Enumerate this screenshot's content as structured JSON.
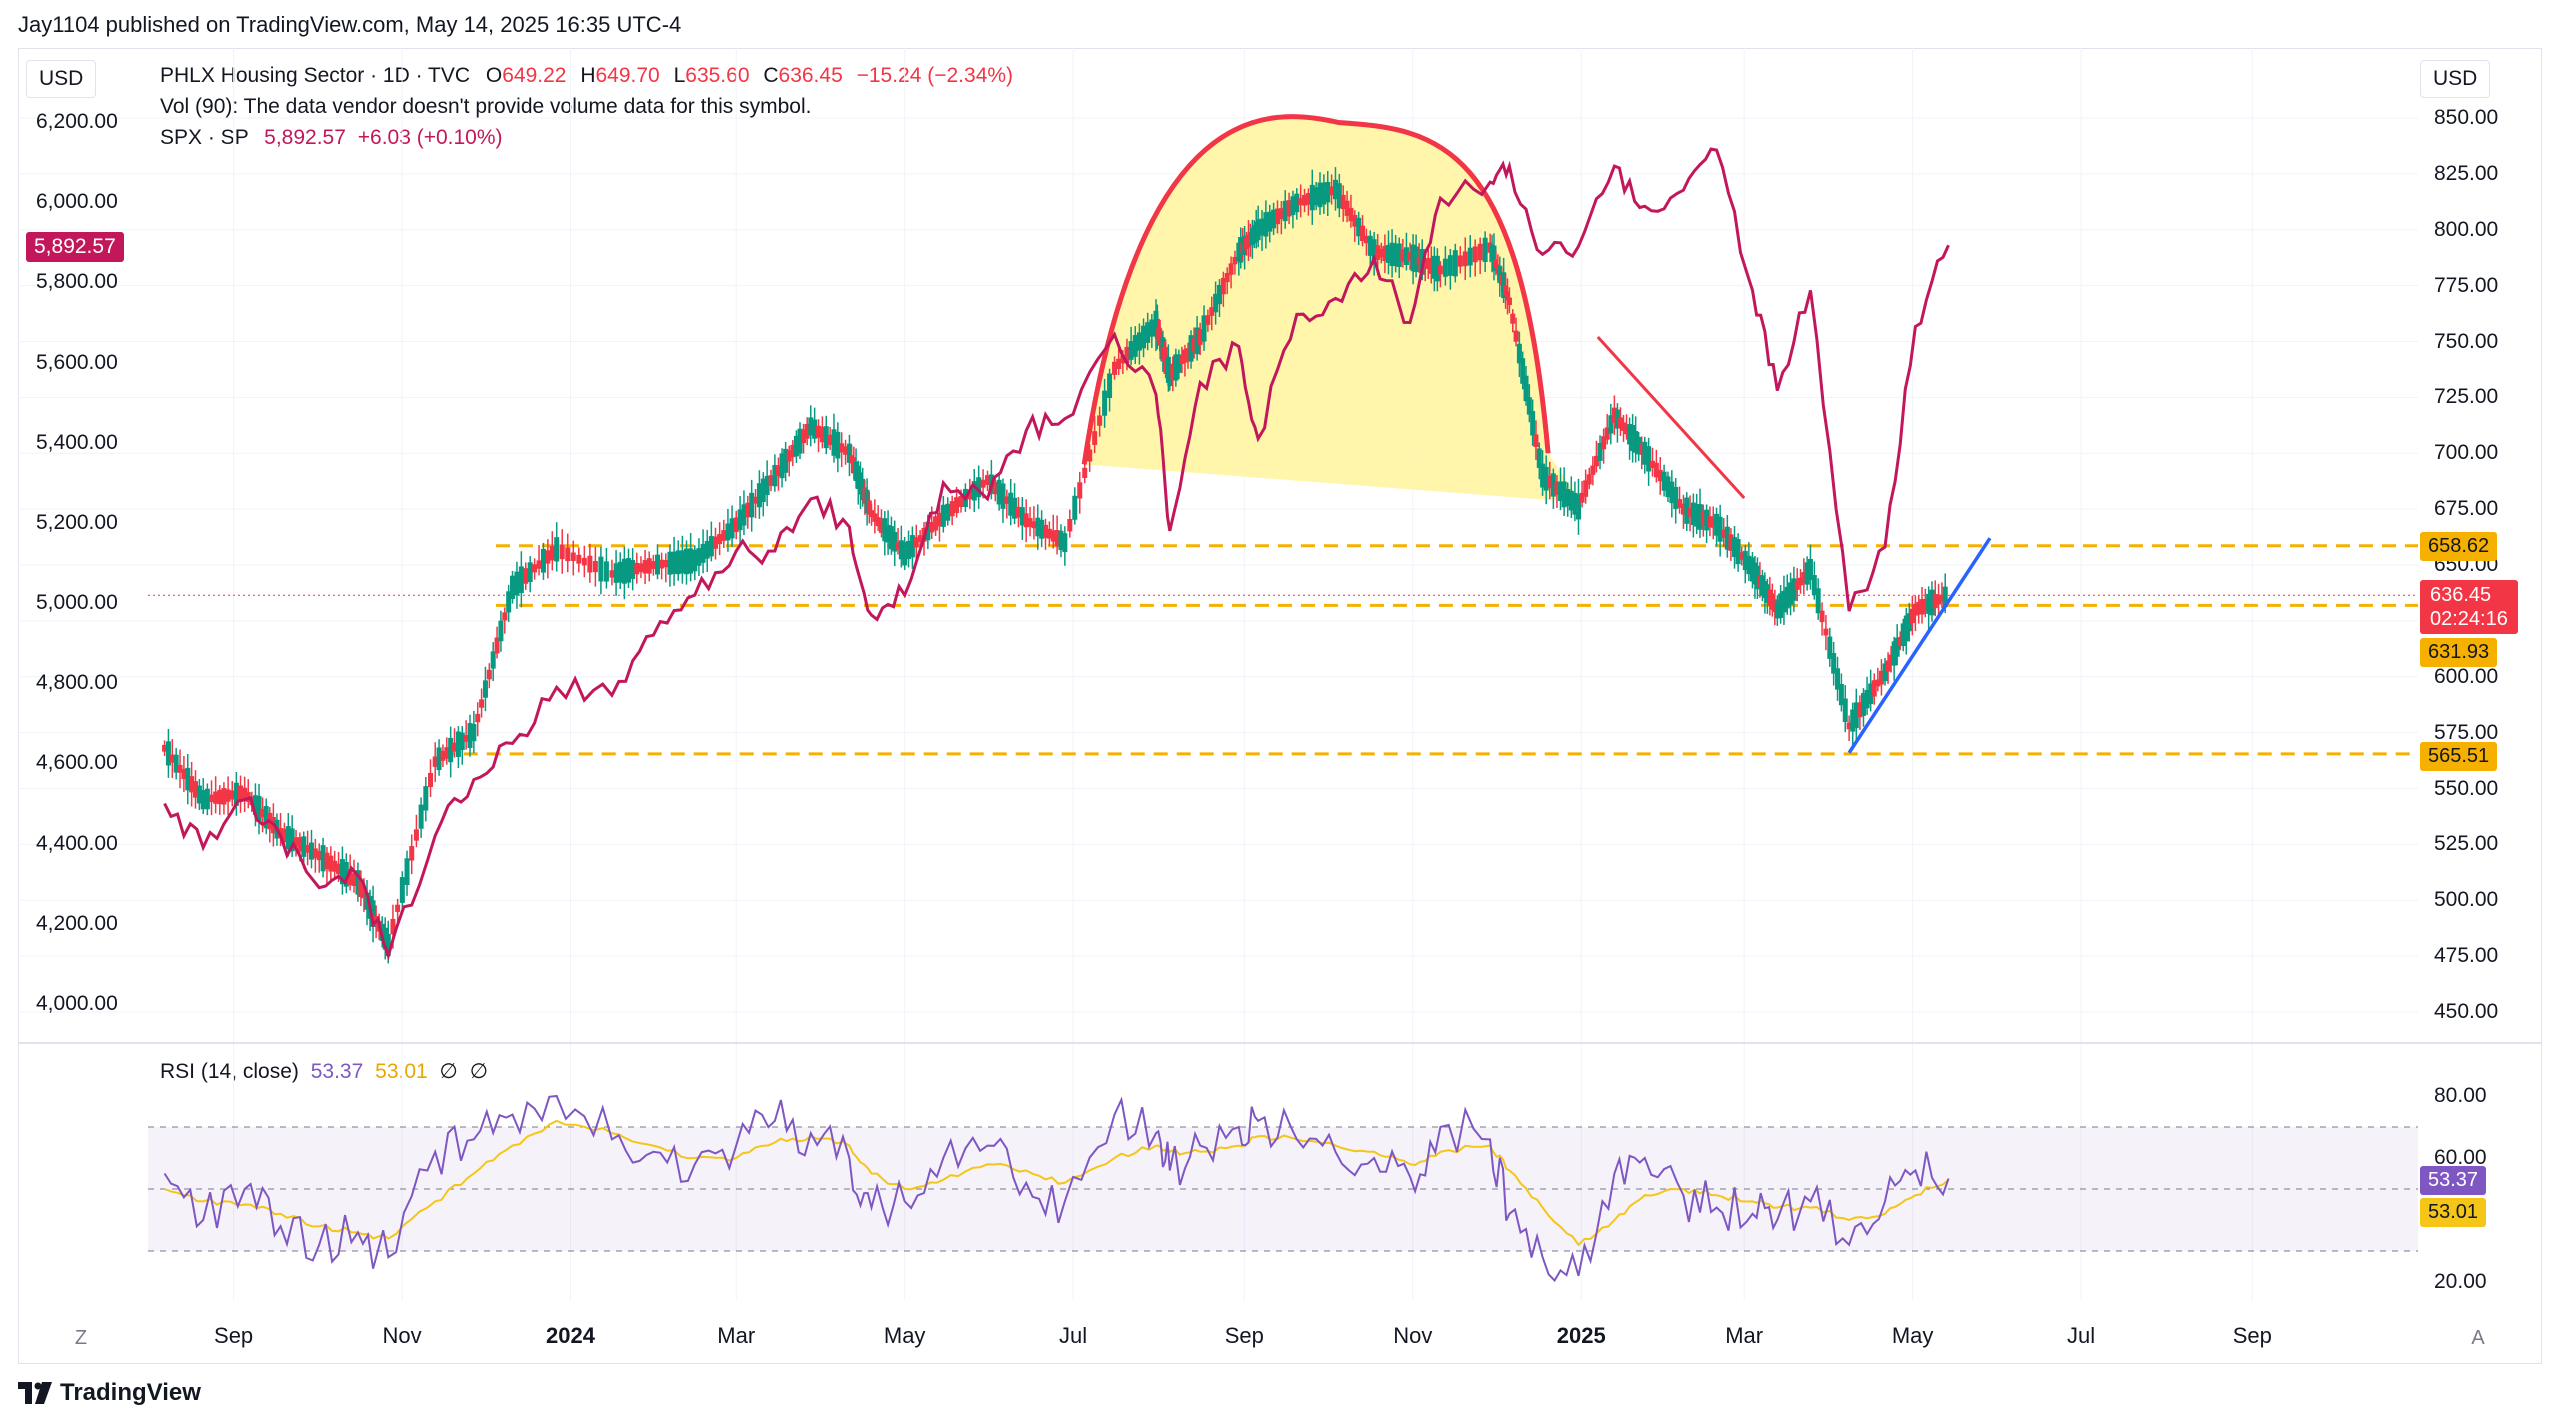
{
  "header": {
    "published": "Jay1104 published on TradingView.com, May 14, 2025 16:35 UTC-4"
  },
  "currency": {
    "left": "USD",
    "right": "USD"
  },
  "legend": {
    "symbol": "PHLX Housing Sector · 1D · TVC",
    "o_label": "O",
    "o_value": "649.22",
    "h_label": "H",
    "h_value": "649.70",
    "l_label": "L",
    "l_value": "635.60",
    "c_label": "C",
    "c_value": "636.45",
    "change": "−15.24 (−2.34%)",
    "vol_note": "Vol (90): The data vendor doesn't provide volume data for this symbol.",
    "spx_label": "SPX · SP",
    "spx_value": "5,892.57",
    "spx_change": "+6.03 (+0.10%)"
  },
  "rsi_legend": {
    "label": "RSI (14, close)",
    "rsi_value": "53.37",
    "ma_value": "53.01",
    "extra1": "∅",
    "extra2": "∅"
  },
  "price_tags": {
    "spx_last": "5,892.57",
    "level_high": "658.62",
    "last": "636.45",
    "countdown": "02:24:16",
    "level_mid": "631.93",
    "level_low": "565.51",
    "rsi": "53.37",
    "rsi_ma": "53.01"
  },
  "colors": {
    "up": "#089981",
    "down": "#f23645",
    "spx": "#c2185b",
    "level": "#f5b000",
    "trend_blue": "#2962ff",
    "trend_red": "#f23645",
    "rsi": "#7e57c2",
    "rsi_ma": "#f5c518",
    "arc_fill": "#fff59d"
  },
  "time_axis": [
    "Sep",
    "Nov",
    "2024",
    "Mar",
    "May",
    "Jul",
    "Sep",
    "Nov",
    "2025",
    "Mar",
    "May",
    "Jul",
    "Sep"
  ],
  "corner_left": "Z",
  "corner_right": "A",
  "footer": {
    "brand": "TradingView"
  },
  "chart_data": [
    {
      "type": "line",
      "title": "PHLX Housing Sector · 1D · TVC",
      "series": [
        {
          "name": "SPX · SP",
          "x": [
            "2023-08-07",
            "2023-08-21",
            "2023-09-05",
            "2023-09-18",
            "2023-10-02",
            "2023-10-16",
            "2023-10-27",
            "2023-11-13",
            "2023-11-27",
            "2023-12-11",
            "2023-12-27",
            "2024-01-16",
            "2024-01-31",
            "2024-02-15",
            "2024-03-01",
            "2024-03-15",
            "2024-03-28",
            "2024-04-11",
            "2024-04-19",
            "2024-05-01",
            "2024-05-15",
            "2024-05-31",
            "2024-06-14",
            "2024-06-28",
            "2024-07-16",
            "2024-07-31",
            "2024-08-05",
            "2024-08-16",
            "2024-08-30",
            "2024-09-06",
            "2024-09-20",
            "2024-10-04",
            "2024-10-18",
            "2024-10-31",
            "2024-11-11",
            "2024-11-29",
            "2024-12-06",
            "2024-12-18",
            "2024-12-31",
            "2025-01-13",
            "2025-01-24",
            "2025-02-07",
            "2025-02-19",
            "2025-03-04",
            "2025-03-13",
            "2025-03-25",
            "2025-04-08",
            "2025-04-21",
            "2025-05-02",
            "2025-05-14"
          ],
          "values": [
            4500,
            4390,
            4510,
            4420,
            4290,
            4320,
            4120,
            4420,
            4560,
            4650,
            4790,
            4770,
            4920,
            5020,
            5130,
            5130,
            5260,
            5190,
            4970,
            5020,
            5300,
            5260,
            5430,
            5460,
            5670,
            5520,
            5180,
            5550,
            5640,
            5410,
            5720,
            5760,
            5860,
            5700,
            6010,
            6050,
            6090,
            5870,
            5890,
            6090,
            5990,
            6030,
            6130,
            5780,
            5530,
            5780,
            4980,
            5140,
            5690,
            5892.57
          ]
        }
      ]
    },
    {
      "type": "candlestick-approx",
      "title": "PHLX Housing Sector · 1D · TVC",
      "ylabel": "USD",
      "ylim": [
        440,
        860
      ],
      "series": [
        {
          "name": "PHLX Housing Sector",
          "x": [
            "2023-08-07",
            "2023-08-21",
            "2023-09-05",
            "2023-09-18",
            "2023-10-02",
            "2023-10-16",
            "2023-10-27",
            "2023-11-13",
            "2023-11-27",
            "2023-12-11",
            "2023-12-27",
            "2024-01-16",
            "2024-01-31",
            "2024-02-15",
            "2024-03-01",
            "2024-03-15",
            "2024-03-28",
            "2024-04-11",
            "2024-04-19",
            "2024-05-01",
            "2024-05-15",
            "2024-05-31",
            "2024-06-14",
            "2024-06-28",
            "2024-07-16",
            "2024-07-31",
            "2024-08-05",
            "2024-08-16",
            "2024-08-30",
            "2024-09-06",
            "2024-09-20",
            "2024-10-04",
            "2024-10-18",
            "2024-10-31",
            "2024-11-11",
            "2024-11-29",
            "2024-12-06",
            "2024-12-18",
            "2024-12-31",
            "2025-01-13",
            "2025-01-24",
            "2025-02-07",
            "2025-02-19",
            "2025-03-04",
            "2025-03-13",
            "2025-03-25",
            "2025-04-08",
            "2025-04-21",
            "2025-05-02",
            "2025-05-14"
          ],
          "values": [
            568,
            545,
            548,
            530,
            520,
            508,
            480,
            562,
            575,
            640,
            657,
            646,
            650,
            652,
            668,
            690,
            712,
            700,
            673,
            655,
            672,
            688,
            670,
            660,
            738,
            758,
            735,
            752,
            790,
            800,
            812,
            818,
            790,
            788,
            782,
            792,
            768,
            690,
            676,
            717,
            700,
            675,
            668,
            648,
            630,
            648,
            578,
            602,
            630,
            636.45
          ]
        }
      ]
    },
    {
      "type": "line",
      "title": "RSI (14, close)",
      "ylim": [
        10,
        90
      ],
      "series": [
        {
          "name": "RSI",
          "values": [
            55,
            40,
            50,
            38,
            32,
            36,
            28,
            62,
            66,
            74,
            80,
            66,
            62,
            58,
            64,
            72,
            68,
            60,
            44,
            46,
            60,
            64,
            52,
            46,
            74,
            68,
            56,
            64,
            70,
            72,
            66,
            62,
            60,
            54,
            70,
            66,
            42,
            28,
            22,
            55,
            60,
            48,
            44,
            42,
            40,
            46,
            32,
            46,
            56,
            53.37
          ]
        },
        {
          "name": "RSI-based MA",
          "values": [
            50,
            46,
            45,
            42,
            38,
            36,
            34,
            46,
            55,
            64,
            72,
            68,
            64,
            60,
            60,
            65,
            67,
            64,
            55,
            50,
            53,
            58,
            56,
            52,
            60,
            64,
            62,
            62,
            64,
            67,
            66,
            64,
            62,
            58,
            62,
            64,
            56,
            44,
            32,
            40,
            48,
            50,
            48,
            46,
            44,
            44,
            40,
            42,
            48,
            53.01
          ]
        }
      ]
    }
  ],
  "levels": {
    "upper": "658.62",
    "middle": "631.93",
    "lower": "565.51"
  }
}
